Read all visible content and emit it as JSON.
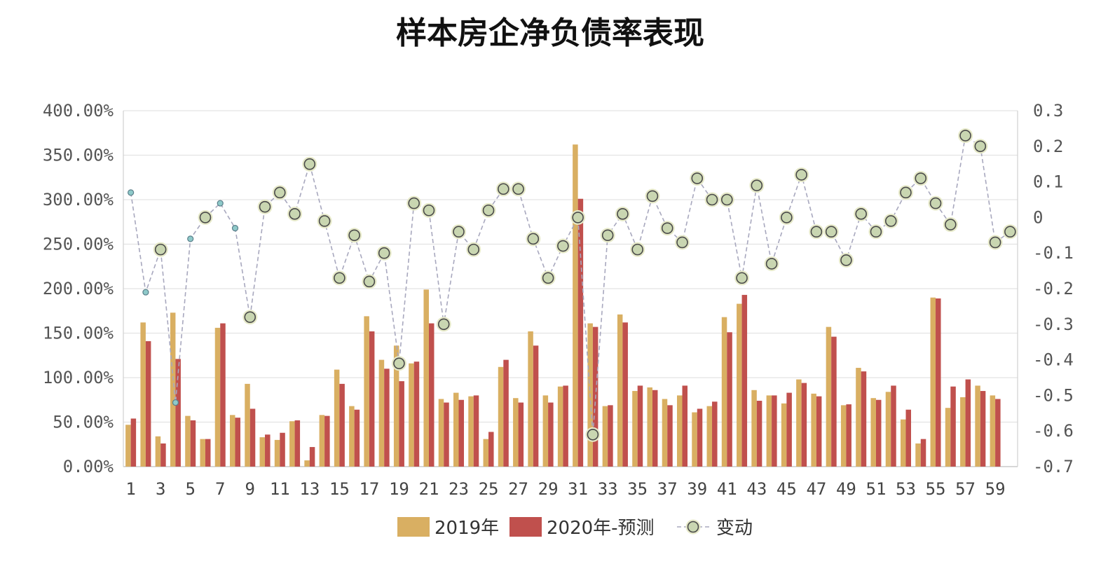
{
  "chart_data": {
    "type": "bar+line",
    "title": "样本房企净负债率表现",
    "categories": [
      1,
      2,
      3,
      4,
      5,
      6,
      7,
      8,
      9,
      10,
      11,
      12,
      13,
      14,
      15,
      16,
      17,
      18,
      19,
      20,
      21,
      22,
      23,
      24,
      25,
      26,
      27,
      28,
      29,
      30,
      31,
      32,
      33,
      34,
      35,
      36,
      37,
      38,
      39,
      40,
      41,
      42,
      43,
      44,
      45,
      46,
      47,
      48,
      49,
      50,
      51,
      52,
      53,
      54,
      55,
      56,
      57,
      58,
      59,
      60
    ],
    "x_tick_labels": [
      "1",
      "3",
      "5",
      "7",
      "9",
      "11",
      "13",
      "15",
      "17",
      "19",
      "21",
      "23",
      "25",
      "27",
      "29",
      "31",
      "33",
      "35",
      "37",
      "39",
      "41",
      "43",
      "45",
      "47",
      "49",
      "51",
      "53",
      "55",
      "57",
      "59"
    ],
    "y_left": {
      "min": 0,
      "max": 400,
      "tick_labels": [
        "0.00%",
        "50.00%",
        "100.00%",
        "150.00%",
        "200.00%",
        "250.00%",
        "300.00%",
        "350.00%",
        "400.00%"
      ]
    },
    "y_right": {
      "min": -0.7,
      "max": 0.3,
      "tick_labels": [
        "-0.7",
        "-0.6",
        "-0.5",
        "-0.4",
        "-0.3",
        "-0.2",
        "-0.1",
        "0",
        "0.1",
        "0.2",
        "0.3"
      ]
    },
    "series": [
      {
        "name": "2019年",
        "type": "bar",
        "axis": "left",
        "color": "#D9AF62",
        "values": [
          47,
          162,
          34,
          173,
          57,
          31,
          156,
          58,
          93,
          33,
          30,
          51,
          7,
          58,
          109,
          68,
          169,
          120,
          136,
          116,
          199,
          76,
          83,
          79,
          31,
          112,
          77,
          152,
          80,
          90,
          362,
          161,
          68,
          171,
          85,
          89,
          76,
          80,
          61,
          68,
          168,
          183,
          86,
          80,
          71,
          98,
          82,
          157,
          69,
          111,
          77,
          84,
          53,
          26,
          190,
          66,
          78,
          91,
          80,
          0
        ]
      },
      {
        "name": "2020年-预测",
        "type": "bar",
        "axis": "left",
        "color": "#C0504D",
        "values": [
          54,
          141,
          26,
          121,
          52,
          31,
          161,
          55,
          65,
          36,
          38,
          52,
          22,
          57,
          93,
          64,
          152,
          110,
          96,
          118,
          161,
          72,
          75,
          80,
          39,
          120,
          72,
          136,
          72,
          91,
          301,
          157,
          69,
          162,
          91,
          86,
          69,
          91,
          65,
          73,
          151,
          193,
          74,
          80,
          83,
          94,
          79,
          146,
          70,
          107,
          75,
          91,
          64,
          31,
          189,
          90,
          98,
          85,
          76,
          0
        ]
      },
      {
        "name": "变动",
        "type": "line",
        "axis": "right",
        "color": "#C9D6B1",
        "values": [
          0.07,
          -0.21,
          -0.09,
          -0.52,
          -0.06,
          0.0,
          0.04,
          -0.03,
          -0.28,
          0.03,
          0.07,
          0.01,
          0.15,
          -0.01,
          -0.17,
          -0.05,
          -0.18,
          -0.1,
          -0.41,
          0.04,
          0.02,
          -0.3,
          -0.04,
          -0.09,
          0.02,
          0.08,
          0.08,
          -0.06,
          -0.17,
          -0.08,
          0.0,
          -0.61,
          -0.05,
          0.01,
          -0.09,
          0.06,
          -0.03,
          -0.07,
          0.11,
          0.05,
          0.05,
          -0.17,
          0.09,
          -0.13,
          0.0,
          0.12,
          -0.04,
          -0.04,
          -0.12,
          0.01,
          -0.04,
          -0.01,
          0.07,
          0.11,
          0.04,
          -0.02,
          0.23,
          0.2,
          -0.07,
          -0.04
        ]
      }
    ],
    "legend": [
      "2019年",
      "2020年-预测",
      "变动"
    ],
    "legend_position": "bottom-center",
    "grid": true
  }
}
